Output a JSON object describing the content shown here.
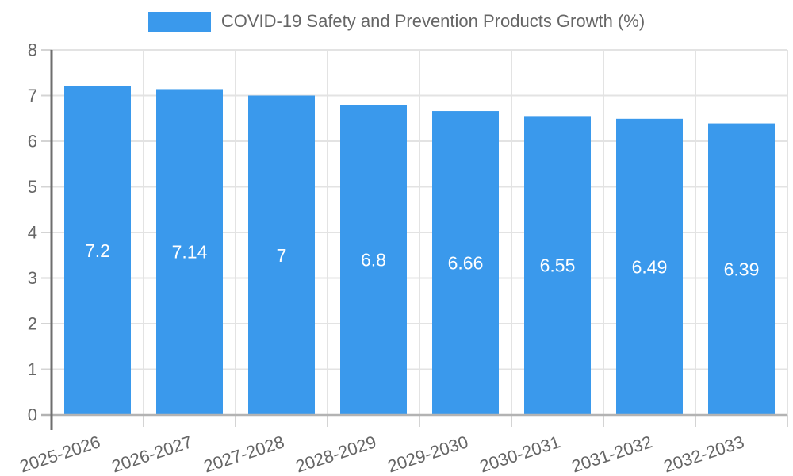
{
  "legend": {
    "label": "COVID-19 Safety and Prevention Products Growth (%)"
  },
  "chart_data": {
    "type": "bar",
    "title": "COVID-19 Safety and Prevention Products Growth (%)",
    "categories": [
      "2025-2026",
      "2026-2027",
      "2027-2028",
      "2028-2029",
      "2029-2030",
      "2030-2031",
      "2031-2032",
      "2032-2033"
    ],
    "values": [
      7.2,
      7.14,
      7,
      6.8,
      6.66,
      6.55,
      6.49,
      6.39
    ],
    "value_labels": [
      "7.2",
      "7.14",
      "7",
      "6.8",
      "6.66",
      "6.55",
      "6.49",
      "6.39"
    ],
    "xlabel": "",
    "ylabel": "",
    "ylim": [
      0,
      8
    ],
    "y_ticks": [
      0,
      1,
      2,
      3,
      4,
      5,
      6,
      7,
      8
    ],
    "grid": true,
    "legend_position": "top",
    "colors": {
      "bar": "#3A99EC",
      "grid": "#e3e3e3",
      "tick": "#d4d4d4",
      "y_axis_line": "#6e6e6e",
      "x_axis_border": "#b3b3b3",
      "axis_text": "#666666",
      "value_label_text": "#ffffff"
    }
  }
}
